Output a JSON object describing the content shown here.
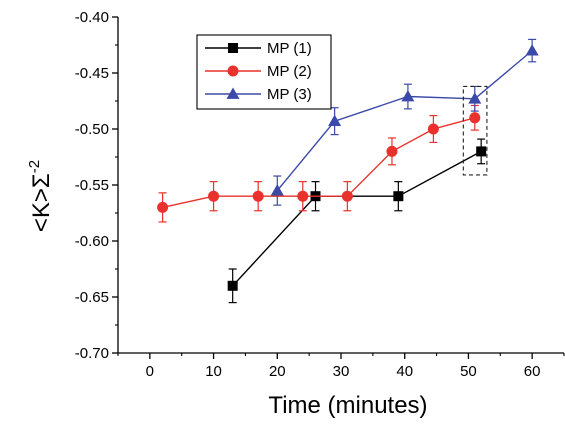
{
  "chart_data": {
    "type": "line",
    "title": "",
    "xlabel": "Time (minutes)",
    "ylabel": "<K>Σ",
    "ylabel_superscript": "-2",
    "xlim": [
      -5,
      65
    ],
    "ylim": [
      -0.7,
      -0.4
    ],
    "xticks": [
      0,
      10,
      20,
      30,
      40,
      50,
      60
    ],
    "yticks": [
      -0.7,
      -0.65,
      -0.6,
      -0.55,
      -0.5,
      -0.45,
      -0.4
    ],
    "ytick_labels": [
      "-0.70",
      "-0.65",
      "-0.60",
      "-0.55",
      "-0.50",
      "-0.45",
      "-0.40"
    ],
    "grid": false,
    "legend_position": "top-left",
    "series": [
      {
        "name": "MP (1)",
        "color": "#000000",
        "marker": "square",
        "points": [
          {
            "x": 13,
            "y": -0.64,
            "err": 0.015
          },
          {
            "x": 26,
            "y": -0.56,
            "err": 0.013
          },
          {
            "x": 39,
            "y": -0.56,
            "err": 0.013
          },
          {
            "x": 52,
            "y": -0.52,
            "err": 0.011
          }
        ]
      },
      {
        "name": "MP (2)",
        "color": "#e8322b",
        "marker": "circle",
        "points": [
          {
            "x": 2,
            "y": -0.57,
            "err": 0.013
          },
          {
            "x": 10,
            "y": -0.56,
            "err": 0.013
          },
          {
            "x": 17,
            "y": -0.56,
            "err": 0.013
          },
          {
            "x": 24,
            "y": -0.56,
            "err": 0.013
          },
          {
            "x": 31,
            "y": -0.56,
            "err": 0.013
          },
          {
            "x": 38,
            "y": -0.52,
            "err": 0.012
          },
          {
            "x": 44.5,
            "y": -0.5,
            "err": 0.012
          },
          {
            "x": 51,
            "y": -0.49,
            "err": 0.011
          }
        ]
      },
      {
        "name": "MP (3)",
        "color": "#3b4aa8",
        "marker": "triangle",
        "points": [
          {
            "x": 20,
            "y": -0.555,
            "err": 0.013
          },
          {
            "x": 29,
            "y": -0.493,
            "err": 0.012
          },
          {
            "x": 40.5,
            "y": -0.471,
            "err": 0.011
          },
          {
            "x": 51,
            "y": -0.473,
            "err": 0.011
          },
          {
            "x": 60,
            "y": -0.43,
            "err": 0.01
          }
        ]
      }
    ],
    "annotations": [
      {
        "type": "dashed-box",
        "x_range": [
          49.2,
          52.9
        ],
        "y_range": [
          -0.541,
          -0.462
        ]
      }
    ]
  }
}
